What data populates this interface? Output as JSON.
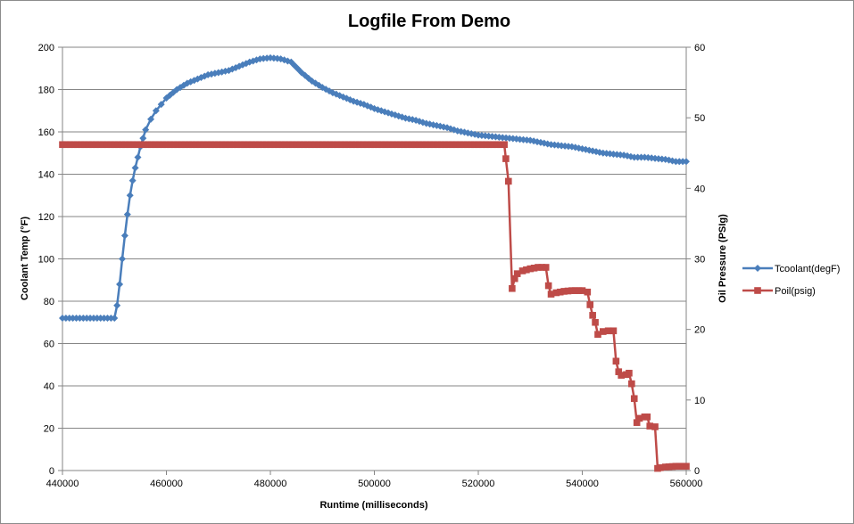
{
  "chart_data": {
    "type": "line",
    "title": "Logfile From Demo",
    "xlabel": "Runtime (milliseconds)",
    "ylabel": "Coolant Temp (°F)",
    "y2label": "Oil Pressure (PSIg)",
    "xlim": [
      440000,
      560000
    ],
    "ylim": [
      0,
      200
    ],
    "y2lim": [
      0,
      60
    ],
    "x_ticks": [
      "440000",
      "460000",
      "480000",
      "500000",
      "520000",
      "540000",
      "560000"
    ],
    "y_ticks": [
      "0",
      "20",
      "40",
      "60",
      "80",
      "100",
      "120",
      "140",
      "160",
      "180",
      "200"
    ],
    "y2_ticks": [
      "0",
      "10",
      "20",
      "30",
      "40",
      "50",
      "60"
    ],
    "grid": true,
    "legend_position": "right",
    "series": [
      {
        "name": "Tcoolant(degF)",
        "axis": "left",
        "color": "#4a7ebb",
        "marker": "diamond",
        "points": [
          [
            440000,
            72
          ],
          [
            444000,
            72
          ],
          [
            448000,
            72
          ],
          [
            450000,
            72
          ],
          [
            450500,
            78
          ],
          [
            451000,
            88
          ],
          [
            451500,
            100
          ],
          [
            452000,
            111
          ],
          [
            452500,
            121
          ],
          [
            453000,
            130
          ],
          [
            453500,
            137
          ],
          [
            454000,
            143
          ],
          [
            454500,
            148
          ],
          [
            455000,
            153
          ],
          [
            455500,
            157
          ],
          [
            456000,
            161
          ],
          [
            457000,
            166
          ],
          [
            458000,
            170
          ],
          [
            459000,
            173
          ],
          [
            460000,
            176
          ],
          [
            462000,
            180
          ],
          [
            464000,
            183
          ],
          [
            466000,
            185
          ],
          [
            468000,
            187
          ],
          [
            470000,
            188
          ],
          [
            472000,
            189
          ],
          [
            474000,
            191
          ],
          [
            476000,
            193
          ],
          [
            478000,
            194.5
          ],
          [
            480000,
            195
          ],
          [
            482000,
            194.5
          ],
          [
            484000,
            193
          ],
          [
            486000,
            188
          ],
          [
            488000,
            184
          ],
          [
            490000,
            181
          ],
          [
            492000,
            178.5
          ],
          [
            494000,
            176.5
          ],
          [
            496000,
            174.5
          ],
          [
            498000,
            173
          ],
          [
            500000,
            171
          ],
          [
            502000,
            169.5
          ],
          [
            504000,
            168
          ],
          [
            506000,
            166.5
          ],
          [
            508000,
            165.5
          ],
          [
            510000,
            164
          ],
          [
            512000,
            163
          ],
          [
            514000,
            162
          ],
          [
            516000,
            160.5
          ],
          [
            518000,
            159.5
          ],
          [
            520000,
            158.5
          ],
          [
            522000,
            158
          ],
          [
            524000,
            157.5
          ],
          [
            526000,
            157
          ],
          [
            528000,
            156.5
          ],
          [
            530000,
            156
          ],
          [
            532000,
            155
          ],
          [
            534000,
            154
          ],
          [
            536000,
            153.5
          ],
          [
            538000,
            153
          ],
          [
            540000,
            152
          ],
          [
            542000,
            151
          ],
          [
            544000,
            150
          ],
          [
            546000,
            149.5
          ],
          [
            548000,
            149
          ],
          [
            550000,
            148
          ],
          [
            552000,
            148
          ],
          [
            554000,
            147.5
          ],
          [
            556000,
            147
          ],
          [
            558000,
            146
          ],
          [
            560000,
            146
          ]
        ]
      },
      {
        "name": "Poil(psig)",
        "axis": "right",
        "color": "#be4b48",
        "marker": "square",
        "points": [
          [
            440000,
            46.2
          ],
          [
            450000,
            46.2
          ],
          [
            460000,
            46.2
          ],
          [
            470000,
            46.2
          ],
          [
            480000,
            46.2
          ],
          [
            490000,
            46.2
          ],
          [
            500000,
            46.2
          ],
          [
            510000,
            46.2
          ],
          [
            520000,
            46.2
          ],
          [
            525000,
            46.2
          ],
          [
            525300,
            44.2
          ],
          [
            525800,
            41
          ],
          [
            526500,
            25.8
          ],
          [
            527000,
            27.2
          ],
          [
            527500,
            27.9
          ],
          [
            528500,
            28.3
          ],
          [
            530000,
            28.6
          ],
          [
            531500,
            28.8
          ],
          [
            533000,
            28.8
          ],
          [
            533500,
            26.2
          ],
          [
            534000,
            25
          ],
          [
            535000,
            25.2
          ],
          [
            536500,
            25.4
          ],
          [
            538000,
            25.5
          ],
          [
            540000,
            25.5
          ],
          [
            541000,
            25.3
          ],
          [
            541500,
            23.5
          ],
          [
            542000,
            22
          ],
          [
            542500,
            21
          ],
          [
            543000,
            19.3
          ],
          [
            544000,
            19.7
          ],
          [
            545000,
            19.8
          ],
          [
            546000,
            19.8
          ],
          [
            546500,
            15.5
          ],
          [
            547000,
            14
          ],
          [
            547500,
            13.5
          ],
          [
            548500,
            13.6
          ],
          [
            549000,
            13.8
          ],
          [
            549500,
            12.3
          ],
          [
            550000,
            10.2
          ],
          [
            550500,
            6.8
          ],
          [
            551000,
            7.4
          ],
          [
            552000,
            7.6
          ],
          [
            552500,
            7.6
          ],
          [
            553000,
            6.3
          ],
          [
            554000,
            6.2
          ],
          [
            554500,
            0.3
          ],
          [
            555000,
            0.4
          ],
          [
            556000,
            0.5
          ],
          [
            558000,
            0.6
          ],
          [
            560000,
            0.6
          ]
        ]
      }
    ]
  }
}
